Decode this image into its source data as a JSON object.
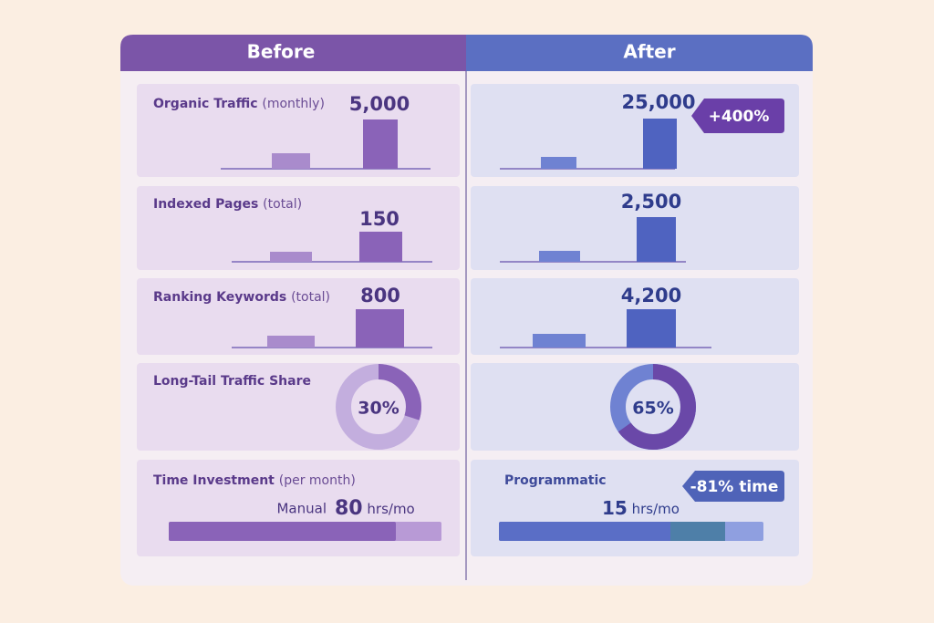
{
  "header": {
    "before": "Before",
    "after": "After"
  },
  "rows": [
    {
      "label": "Organic Traffic",
      "qualifier": "(monthly)",
      "before": "5,000",
      "after": "25,000",
      "badge": "+400%"
    },
    {
      "label": "Indexed Pages",
      "qualifier": "(total)",
      "before": "150",
      "after": "2,500"
    },
    {
      "label": "Ranking Keywords",
      "qualifier": "(total)",
      "before": "800",
      "after": "4,200"
    }
  ],
  "share": {
    "label": "Long-Tail Traffic Share",
    "before": {
      "value": 30,
      "label": "30%"
    },
    "after": {
      "value": 65,
      "label": "65%"
    }
  },
  "time": {
    "label": "Time Investment",
    "qualifier": "(per month)",
    "before": {
      "method": "Manual",
      "value": "80",
      "unit": "hrs/mo"
    },
    "after": {
      "method": "Programmatic",
      "value": "15",
      "unit": "hrs/mo"
    },
    "badge": "-81% time"
  }
}
